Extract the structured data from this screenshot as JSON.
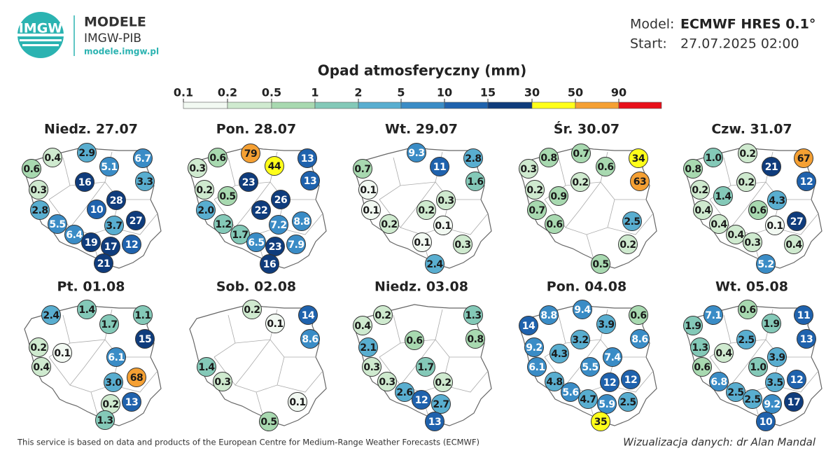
{
  "header": {
    "logo": "IMGW",
    "brand": "MODELE",
    "org": "IMGW-PIB",
    "url": "modele.imgw.pl",
    "model_label": "Model:",
    "model": "ECMWF HRES 0.1°",
    "start_label": "Start:",
    "start": "27.07.2025 02:00"
  },
  "legend": {
    "title": "Opad atmosferyczny (mm)",
    "ticks": [
      "0.1",
      "0.2",
      "0.5",
      "1",
      "2",
      "5",
      "10",
      "15",
      "30",
      "50",
      "90"
    ],
    "colors": [
      "#f2f9f2",
      "#cfeacf",
      "#a8d9b0",
      "#84c9b8",
      "#59aed0",
      "#3a8cc6",
      "#1f62ad",
      "#0f3c7c",
      "#ffff1a",
      "#f5a033",
      "#e8101a"
    ]
  },
  "panels": [
    {
      "title": "Niedz. 27.07",
      "points": [
        "0.4",
        "2.9",
        "6.7",
        "0.6",
        "5.1",
        "3.3",
        "16",
        "0.3",
        "28",
        "2.8",
        "10",
        "27",
        "5.5",
        "3.7",
        "6.4",
        "19",
        "17",
        "12",
        "21"
      ]
    },
    {
      "title": "Pon. 28.07",
      "points": [
        "0.6",
        "79",
        "13",
        "0.3",
        "44",
        "13",
        "23",
        "0.2",
        "0.5",
        "26",
        "2.0",
        "22",
        "8.8",
        "1.2",
        "7.2",
        "1.7",
        "6.5",
        "23",
        "7.9",
        "16"
      ]
    },
    {
      "title": "Wt. 29.07",
      "points": [
        "9.3",
        "2.8",
        "0.7",
        "11",
        "1.6",
        "0.1",
        "0.3",
        "0.1",
        "0.2",
        "0.2",
        "0.1",
        "0.1",
        "0.3",
        "2.4"
      ]
    },
    {
      "title": "Śr. 30.07",
      "points": [
        "0.8",
        "0.7",
        "34",
        "0.3",
        "0.6",
        "63",
        "0.2",
        "0.2",
        "0.9",
        "0.7",
        "2.5",
        "0.6",
        "0.2",
        "0.5"
      ]
    },
    {
      "title": "Czw. 31.07",
      "points": [
        "1.0",
        "0.2",
        "67",
        "0.8",
        "21",
        "12",
        "0.2",
        "0.2",
        "1.4",
        "4.3",
        "0.4",
        "0.6",
        "27",
        "0.4",
        "0.1",
        "0.4",
        "0.3",
        "0.4",
        "5.2"
      ]
    },
    {
      "title": "Pt. 01.08",
      "points": [
        "2.4",
        "1.4",
        "1.1",
        "1.7",
        "15",
        "0.2",
        "0.1",
        "0.4",
        "6.1",
        "68",
        "3.0",
        "0.2",
        "13",
        "1.3"
      ]
    },
    {
      "title": "Sob. 02.08",
      "points": [
        "0.2",
        "14",
        "0.1",
        "8.6",
        "1.4",
        "0.3",
        "0.1",
        "0.5"
      ]
    },
    {
      "title": "Niedz. 03.08",
      "points": [
        "0.2",
        "1.3",
        "0.4",
        "0.8",
        "0.6",
        "2.1",
        "1.7",
        "0.3",
        "0.3",
        "0.2",
        "2.6",
        "12",
        "2.7",
        "13"
      ]
    },
    {
      "title": "Pon. 04.08",
      "points": [
        "8.8",
        "9.4",
        "0.6",
        "14",
        "3.9",
        "8.6",
        "3.2",
        "9.2",
        "4.3",
        "7.4",
        "6.1",
        "5.5",
        "4.8",
        "12",
        "12",
        "5.6",
        "4.7",
        "5.9",
        "2.5",
        "35"
      ]
    },
    {
      "title": "Wt. 05.08",
      "points": [
        "7.1",
        "0.6",
        "11",
        "1.9",
        "1.9",
        "13",
        "2.5",
        "1.3",
        "0.4",
        "3.9",
        "0.6",
        "1.0",
        "3.5",
        "12",
        "6.8",
        "2.5",
        "2.5",
        "9.2",
        "17",
        "10"
      ]
    }
  ],
  "footer": {
    "source": "This service is based on data and products of the European Centre for Medium-Range Weather Forecasts (ECMWF)",
    "credit": "Wizualizacja danych: dr Alan Mandal"
  }
}
